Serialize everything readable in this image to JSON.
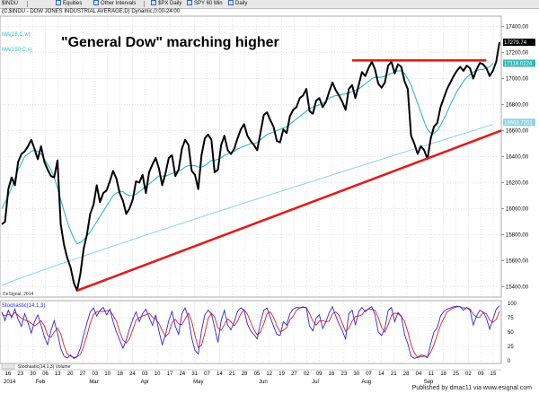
{
  "toolbar": {
    "symbol_box": "$INDU",
    "menu_equities": "Equities",
    "menu_other_intervals": "Other Intervals",
    "tab_spx_daily": "$PX Daily",
    "tab_spy_60": "SPY 60 Min",
    "tab_spy_daily": "Daily"
  },
  "header": "(C,$INDU - DOW JONES INDUSTRIAL AVERAGE,D) Dynamic,0:00-24:00",
  "chart_data": [
    {
      "type": "line",
      "title": "\"General Dow\" marching higher",
      "series_labels": {
        "ma18": "MA(18,C,w)",
        "ma150": "MA(150,C,s)"
      },
      "x_labels": [
        "16",
        "23",
        "30",
        "06",
        "13",
        "20",
        "27",
        "03",
        "10",
        "18",
        "24",
        "03",
        "10",
        "17",
        "24",
        "31",
        "07",
        "14",
        "21",
        "28",
        "05",
        "12",
        "19",
        "27",
        "02",
        "09",
        "16",
        "23",
        "30",
        "07",
        "14",
        "21",
        "28",
        "04",
        "11",
        "18",
        "25",
        "02",
        "09",
        "15"
      ],
      "month_labels": [
        "2014",
        "Feb",
        "Mar",
        "Apr",
        "May",
        "Jun",
        "Jul",
        "Aug",
        "Sep"
      ],
      "y_ticks": [
        15400,
        15600,
        15800,
        16000,
        16200,
        16400,
        16600,
        16800,
        17000,
        17200,
        17400
      ],
      "ylim": [
        15320,
        17480
      ],
      "last_labels": {
        "close": "17279.74",
        "ma18": "17118.0224",
        "ma150": "16663.7201"
      },
      "close": [
        15880,
        15900,
        16150,
        16240,
        16180,
        16360,
        16420,
        16440,
        16480,
        16530,
        16460,
        16380,
        16480,
        16360,
        16300,
        16250,
        16240,
        16370,
        15880,
        15720,
        15620,
        15550,
        15430,
        15370,
        15500,
        15690,
        15800,
        15960,
        16030,
        16180,
        16050,
        16120,
        16140,
        16210,
        16290,
        16230,
        16120,
        16060,
        15960,
        16000,
        16070,
        16210,
        16200,
        16260,
        16120,
        16280,
        16340,
        16390,
        16310,
        16180,
        16270,
        16390,
        16410,
        16250,
        16300,
        16460,
        16530,
        16490,
        16290,
        16260,
        16150,
        16410,
        16540,
        16570,
        16530,
        16280,
        16300,
        16490,
        16560,
        16450,
        16420,
        16460,
        16540,
        16610,
        16650,
        16560,
        16520,
        16490,
        16450,
        16580,
        16720,
        16740,
        16680,
        16630,
        16520,
        16510,
        16610,
        16580,
        16710,
        16760,
        16780,
        16850,
        16870,
        16920,
        16750,
        16730,
        16830,
        16850,
        16780,
        16820,
        16900,
        16970,
        16910,
        16870,
        16820,
        16760,
        16920,
        16950,
        16850,
        16950,
        17050,
        17020,
        17080,
        17130,
        17070,
        16960,
        16930,
        16970,
        17100,
        17130,
        17040,
        17110,
        17090,
        16980,
        16920,
        16560,
        16500,
        16420,
        16480,
        16450,
        16380,
        16540,
        16630,
        16660,
        16780,
        16850,
        16920,
        16970,
        17020,
        17060,
        17090,
        17060,
        17100,
        17080,
        17000,
        17070,
        17120,
        17110,
        17080,
        17020,
        17060,
        17130,
        17280
      ],
      "ma18": [
        16000,
        16050,
        16100,
        16160,
        16230,
        16300,
        16350,
        16400,
        16420,
        16440,
        16450,
        16440,
        16420,
        16380,
        16340,
        16300,
        16240,
        16160,
        16070,
        15980,
        15900,
        15830,
        15770,
        15730,
        15740,
        15760,
        15790,
        15820,
        15860,
        15900,
        15940,
        15980,
        16020,
        16060,
        16100,
        16120,
        16130,
        16130,
        16110,
        16100,
        16100,
        16110,
        16130,
        16150,
        16170,
        16190,
        16210,
        16230,
        16250,
        16250,
        16250,
        16260,
        16270,
        16280,
        16290,
        16300,
        16320,
        16330,
        16330,
        16330,
        16320,
        16320,
        16330,
        16350,
        16370,
        16370,
        16380,
        16390,
        16410,
        16420,
        16430,
        16440,
        16460,
        16470,
        16480,
        16490,
        16500,
        16500,
        16510,
        16530,
        16550,
        16570,
        16580,
        16590,
        16600,
        16610,
        16620,
        16630,
        16650,
        16670,
        16690,
        16710,
        16730,
        16750,
        16770,
        16780,
        16790,
        16800,
        16810,
        16830,
        16850,
        16860,
        16870,
        16870,
        16880,
        16880,
        16890,
        16900,
        16910,
        16920,
        16940,
        16960,
        16980,
        17000,
        17010,
        17010,
        17010,
        17020,
        17030,
        17040,
        17050,
        17060,
        17060,
        17040,
        17000,
        16950,
        16880,
        16810,
        16740,
        16670,
        16610,
        16580,
        16580,
        16600,
        16640,
        16690,
        16740,
        16800,
        16850,
        16900,
        16940,
        16980,
        17010,
        17030,
        17050,
        17060,
        17070,
        17070,
        17080,
        17090,
        17118
      ]
    },
    {
      "type": "line",
      "title": "Stochastic(14,1,3)",
      "y_ticks": [
        0,
        25,
        50,
        75,
        100
      ],
      "ylim": [
        0,
        100
      ],
      "k": [
        85,
        70,
        88,
        75,
        90,
        72,
        60,
        82,
        66,
        48,
        68,
        80,
        62,
        42,
        28,
        52,
        70,
        48,
        22,
        8,
        5,
        10,
        4,
        7,
        22,
        45,
        66,
        85,
        92,
        78,
        88,
        93,
        80,
        90,
        68,
        50,
        36,
        22,
        36,
        55,
        72,
        85,
        68,
        82,
        90,
        76,
        62,
        80,
        52,
        28,
        45,
        70,
        86,
        60,
        46,
        82,
        92,
        74,
        40,
        18,
        12,
        52,
        80,
        88,
        82,
        58,
        32,
        70,
        88,
        62,
        54,
        68,
        86,
        92,
        88,
        64,
        52,
        46,
        38,
        66,
        88,
        92,
        76,
        60,
        46,
        44,
        68,
        62,
        82,
        90,
        93,
        92,
        94,
        92,
        60,
        52,
        74,
        80,
        56,
        68,
        84,
        94,
        78,
        64,
        52,
        38,
        82,
        88,
        62,
        85,
        93,
        85,
        91,
        94,
        80,
        50,
        44,
        56,
        88,
        93,
        68,
        84,
        78,
        46,
        30,
        8,
        4,
        6,
        10,
        9,
        5,
        30,
        50,
        58,
        78,
        86,
        90,
        92,
        94,
        95,
        94,
        88,
        93,
        88,
        62,
        78,
        88,
        85,
        74,
        55,
        72,
        90,
        96
      ],
      "d": [
        82,
        78,
        81,
        78,
        84,
        79,
        74,
        71,
        69,
        65,
        61,
        65,
        70,
        61,
        44,
        41,
        50,
        57,
        47,
        26,
        12,
        8,
        6,
        7,
        11,
        25,
        44,
        65,
        81,
        85,
        86,
        86,
        87,
        88,
        79,
        69,
        51,
        36,
        31,
        38,
        54,
        71,
        75,
        78,
        80,
        83,
        76,
        73,
        65,
        53,
        42,
        48,
        67,
        72,
        64,
        63,
        73,
        83,
        69,
        44,
        23,
        27,
        48,
        73,
        83,
        76,
        57,
        53,
        63,
        73,
        68,
        61,
        69,
        82,
        89,
        81,
        68,
        54,
        45,
        50,
        64,
        82,
        85,
        76,
        61,
        50,
        53,
        58,
        71,
        78,
        88,
        92,
        93,
        93,
        82,
        69,
        62,
        69,
        70,
        68,
        69,
        82,
        85,
        79,
        65,
        51,
        57,
        69,
        77,
        78,
        80,
        88,
        90,
        90,
        88,
        75,
        58,
        50,
        63,
        79,
        83,
        82,
        77,
        69,
        51,
        28,
        14,
        6,
        7,
        8,
        8,
        15,
        28,
        46,
        62,
        74,
        85,
        89,
        92,
        94,
        94,
        92,
        92,
        90,
        81,
        76,
        76,
        84,
        82,
        71,
        67,
        72,
        86
      ]
    }
  ],
  "stoch_legend": "Stochastic(14,1,3) Volume",
  "copyright": "©eSignal, 2014",
  "footer": "Published by dmac11 via www.esignal.com",
  "colors": {
    "price": "#000000",
    "ma18": "#35b7b7",
    "ma150": "#8fd3e0",
    "trend": "#dd1e1e",
    "stoch_k": "#2a2ad6",
    "stoch_d": "#e02020",
    "grid": "#c8c8c8",
    "axis_badge_close": "#000000",
    "axis_badge_ma18": "#35b7b7",
    "axis_badge_ma150": "#8fd3e0"
  }
}
